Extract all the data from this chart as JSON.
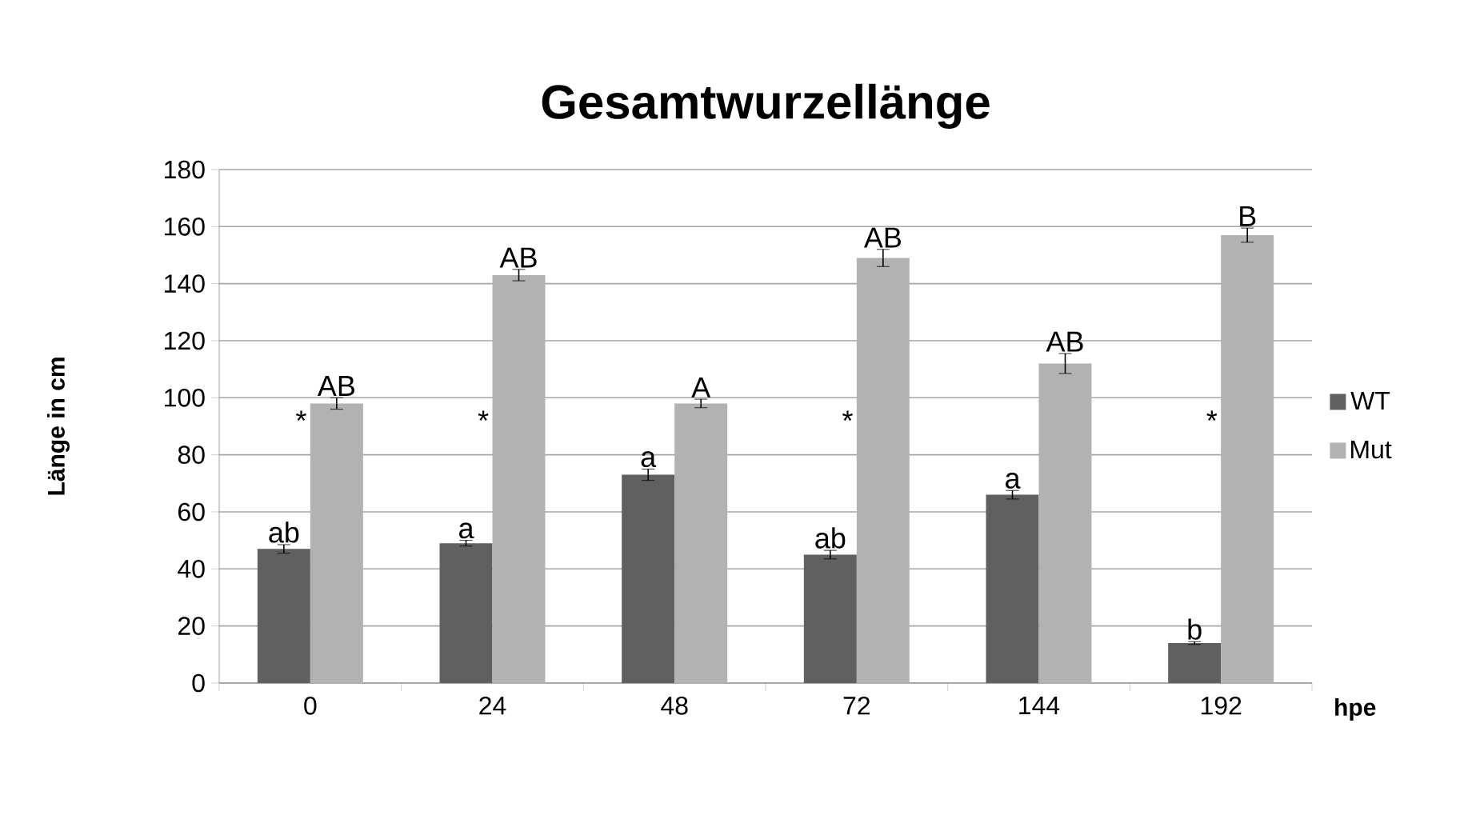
{
  "chart_data": {
    "type": "bar",
    "title": "Gesamtwurzellänge",
    "xlabel": "hpe",
    "ylabel": "Länge in cm",
    "categories": [
      "0",
      "24",
      "48",
      "72",
      "144",
      "192"
    ],
    "series": [
      {
        "name": "WT",
        "color": "#606060",
        "values": [
          47,
          49,
          73,
          45,
          66,
          14
        ],
        "errors": [
          1.5,
          1,
          2,
          1.5,
          1.5,
          0.5
        ]
      },
      {
        "name": "Mut",
        "color": "#b2b2b2",
        "values": [
          98,
          143,
          98,
          149,
          112,
          157
        ],
        "errors": [
          2,
          2,
          1.5,
          3,
          3.5,
          2.5
        ]
      }
    ],
    "ylim": [
      0,
      180
    ],
    "yticks": [
      0,
      20,
      40,
      60,
      80,
      100,
      120,
      140,
      160,
      180
    ],
    "grid": "y",
    "legend": "right",
    "annotations": [
      {
        "text": "ab",
        "x": "0",
        "y": 47
      },
      {
        "text": "AB",
        "x": "0",
        "y": 98
      },
      {
        "text": "*",
        "x": "0",
        "y": 92
      },
      {
        "text": "a",
        "x": "24",
        "y": 49
      },
      {
        "text": "AB",
        "x": "24",
        "y": 143
      },
      {
        "text": "*",
        "x": "24",
        "y": 92
      },
      {
        "text": "a",
        "x": "48",
        "y": 73
      },
      {
        "text": "A",
        "x": "48",
        "y": 98
      },
      {
        "text": "ab",
        "x": "72",
        "y": 45
      },
      {
        "text": "AB",
        "x": "72",
        "y": 149
      },
      {
        "text": "*",
        "x": "72",
        "y": 92
      },
      {
        "text": "a",
        "x": "144",
        "y": 66
      },
      {
        "text": "AB",
        "x": "144",
        "y": 112
      },
      {
        "text": "b",
        "x": "192",
        "y": 14
      },
      {
        "text": "B",
        "x": "192",
        "y": 157
      },
      {
        "text": "*",
        "x": "192",
        "y": 92
      }
    ]
  }
}
